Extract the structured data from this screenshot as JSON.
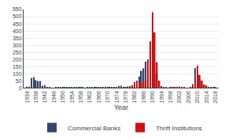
{
  "chart_data": {
    "type": "bar",
    "x": [
      1934,
      1935,
      1936,
      1937,
      1938,
      1939,
      1940,
      1941,
      1942,
      1943,
      1944,
      1945,
      1946,
      1947,
      1948,
      1949,
      1950,
      1951,
      1952,
      1953,
      1954,
      1955,
      1956,
      1957,
      1958,
      1959,
      1960,
      1961,
      1962,
      1963,
      1964,
      1965,
      1966,
      1967,
      1968,
      1969,
      1970,
      1971,
      1972,
      1973,
      1974,
      1975,
      1976,
      1977,
      1978,
      1979,
      1980,
      1981,
      1982,
      1983,
      1984,
      1985,
      1986,
      1987,
      1988,
      1989,
      1990,
      1991,
      1992,
      1993,
      1994,
      1995,
      1996,
      1997,
      1998,
      1999,
      2000,
      2001,
      2002,
      2003,
      2004,
      2005,
      2006,
      2007,
      2008,
      2009,
      2010,
      2011,
      2012,
      2013,
      2014,
      2015,
      2016,
      2017,
      2018
    ],
    "series": [
      {
        "name": "Commercial Banks",
        "color": "#35466b",
        "values": [
          9,
          9,
          69,
          75,
          54,
          48,
          48,
          15,
          20,
          5,
          2,
          1,
          1,
          5,
          3,
          4,
          4,
          2,
          3,
          2,
          2,
          5,
          3,
          4,
          6,
          3,
          1,
          5,
          3,
          2,
          7,
          5,
          7,
          4,
          7,
          9,
          7,
          6,
          3,
          6,
          4,
          14,
          16,
          6,
          7,
          10,
          10,
          10,
          42,
          48,
          79,
          120,
          138,
          184,
          200,
          206,
          159,
          100,
          100,
          50,
          13,
          8,
          5,
          1,
          3,
          7,
          7,
          4,
          10,
          3,
          4,
          0,
          0,
          3,
          25,
          140,
          157,
          90,
          51,
          24,
          18,
          8,
          5,
          8,
          4
        ]
      },
      {
        "name": "Thrift Institutions",
        "color": "#cc1111",
        "values": [
          0,
          0,
          0,
          0,
          0,
          0,
          0,
          0,
          0,
          0,
          0,
          0,
          0,
          0,
          0,
          0,
          0,
          0,
          0,
          0,
          0,
          0,
          0,
          0,
          0,
          0,
          0,
          0,
          0,
          0,
          0,
          0,
          0,
          0,
          0,
          0,
          0,
          0,
          0,
          0,
          0,
          0,
          0,
          0,
          0,
          0,
          11,
          20,
          35,
          50,
          22,
          35,
          45,
          48,
          185,
          327,
          531,
          390,
          181,
          50,
          13,
          1,
          0,
          0,
          0,
          4,
          2,
          4,
          7,
          3,
          4,
          1,
          0,
          3,
          25,
          30,
          156,
          92,
          51,
          24,
          18,
          0,
          0,
          0,
          0
        ]
      }
    ],
    "xlabel": "Year",
    "xlim": [
      1932.5,
      2019.5
    ],
    "xticks": [
      1934,
      1938,
      1942,
      1946,
      1950,
      1954,
      1958,
      1962,
      1966,
      1970,
      1974,
      1978,
      1982,
      1986,
      1990,
      1994,
      1998,
      2002,
      2006,
      2010,
      2014,
      2018
    ],
    "ylim": [
      0,
      550
    ],
    "yticks": [
      0,
      50,
      100,
      150,
      200,
      250,
      300,
      350,
      400,
      450,
      500,
      550
    ],
    "grid": true,
    "legend": "bottom"
  }
}
